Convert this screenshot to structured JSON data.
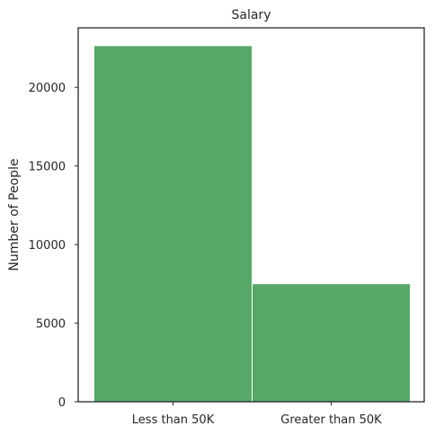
{
  "chart_data": {
    "type": "bar",
    "title": "Salary",
    "xlabel": "",
    "ylabel": "Number of People",
    "categories": [
      "Less than 50K",
      "Greater than 50K"
    ],
    "values": [
      22654,
      7508
    ],
    "ylim": [
      0,
      23785
    ],
    "yticks": [
      0,
      5000,
      10000,
      15000,
      20000
    ],
    "grid": false,
    "bar_color": "#55a868",
    "bar_edge_color": "#ffffff"
  }
}
